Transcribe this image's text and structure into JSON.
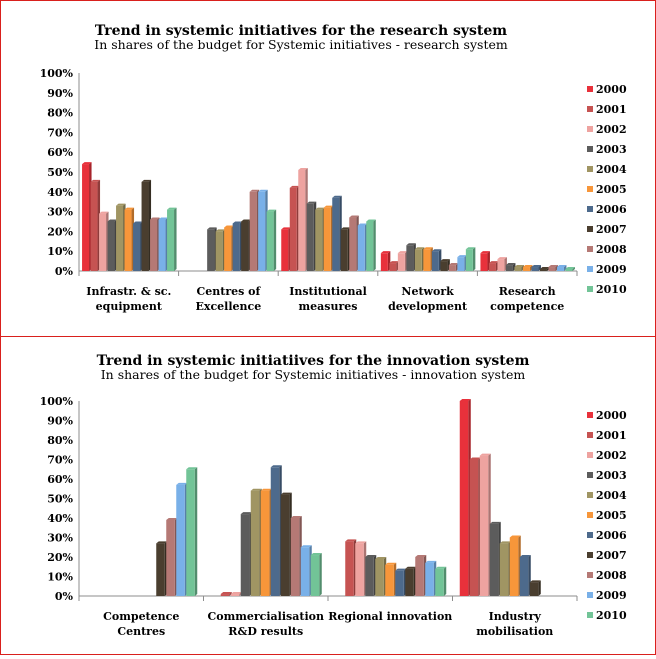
{
  "chart_data": [
    {
      "type": "bar",
      "title": "Trend in systemic initiatives for the research system",
      "subtitle": "In shares of the budget for Systemic initiatives - research system",
      "categories": [
        [
          "Infrastr. & sc.",
          "equipment"
        ],
        [
          "Centres of",
          "Excellence"
        ],
        [
          "Institutional",
          "measures"
        ],
        [
          "Network",
          "development"
        ],
        [
          "Research",
          "competence"
        ]
      ],
      "ylim": [
        0,
        100
      ],
      "yticks": [
        "0%",
        "10%",
        "20%",
        "30%",
        "40%",
        "50%",
        "60%",
        "70%",
        "80%",
        "90%",
        "100%"
      ],
      "legend_position": "right",
      "series": [
        {
          "name": "2000",
          "color": "#e8313b",
          "values": [
            54,
            null,
            21,
            9,
            9
          ]
        },
        {
          "name": "2001",
          "color": "#c65352",
          "values": [
            45,
            null,
            42,
            4,
            4
          ]
        },
        {
          "name": "2002",
          "color": "#eea3a0",
          "values": [
            29,
            null,
            51,
            9,
            6
          ]
        },
        {
          "name": "2003",
          "color": "#5c5c5c",
          "values": [
            25,
            21,
            34,
            13,
            3
          ]
        },
        {
          "name": "2004",
          "color": "#a09563",
          "values": [
            33,
            20,
            31,
            11,
            2
          ]
        },
        {
          "name": "2005",
          "color": "#f7963a",
          "values": [
            31,
            22,
            32,
            11,
            2
          ]
        },
        {
          "name": "2006",
          "color": "#4d6a8c",
          "values": [
            24,
            24,
            37,
            10,
            2
          ]
        },
        {
          "name": "2007",
          "color": "#4a3e2f",
          "values": [
            45,
            25,
            21,
            5,
            1
          ]
        },
        {
          "name": "2008",
          "color": "#b57975",
          "values": [
            26,
            40,
            27,
            3,
            2
          ]
        },
        {
          "name": "2009",
          "color": "#79b0e8",
          "values": [
            26,
            40,
            23,
            7,
            2
          ]
        },
        {
          "name": "2010",
          "color": "#72c497",
          "values": [
            31,
            30,
            25,
            11,
            1
          ]
        }
      ]
    },
    {
      "type": "bar",
      "title": "Trend in systemic initiatiives for the innovation system",
      "subtitle": "In shares of the budget for Systemic initiatives - innovation system",
      "categories": [
        [
          "Competence",
          "Centres"
        ],
        [
          "Commercialisation",
          "R&D results"
        ],
        [
          "Regional innovation"
        ],
        [
          "Industry",
          "mobilisation"
        ]
      ],
      "ylim": [
        0,
        100
      ],
      "yticks": [
        "0%",
        "10%",
        "20%",
        "30%",
        "40%",
        "50%",
        "60%",
        "70%",
        "80%",
        "90%",
        "100%"
      ],
      "legend_position": "right",
      "series": [
        {
          "name": "2000",
          "color": "#e8313b",
          "values": [
            null,
            null,
            null,
            100
          ]
        },
        {
          "name": "2001",
          "color": "#c65352",
          "values": [
            null,
            1,
            28,
            70
          ]
        },
        {
          "name": "2002",
          "color": "#eea3a0",
          "values": [
            null,
            1,
            27,
            72
          ]
        },
        {
          "name": "2003",
          "color": "#5c5c5c",
          "values": [
            null,
            42,
            20,
            37
          ]
        },
        {
          "name": "2004",
          "color": "#a09563",
          "values": [
            null,
            54,
            19,
            27
          ]
        },
        {
          "name": "2005",
          "color": "#f7963a",
          "values": [
            null,
            54,
            16,
            30
          ]
        },
        {
          "name": "2006",
          "color": "#4d6a8c",
          "values": [
            null,
            66,
            13,
            20
          ]
        },
        {
          "name": "2007",
          "color": "#4a3e2f",
          "values": [
            27,
            52,
            14,
            7
          ]
        },
        {
          "name": "2008",
          "color": "#b57975",
          "values": [
            39,
            40,
            20,
            null
          ]
        },
        {
          "name": "2009",
          "color": "#79b0e8",
          "values": [
            57,
            25,
            17,
            null
          ]
        },
        {
          "name": "2010",
          "color": "#72c497",
          "values": [
            65,
            21,
            14,
            null
          ]
        }
      ]
    }
  ]
}
